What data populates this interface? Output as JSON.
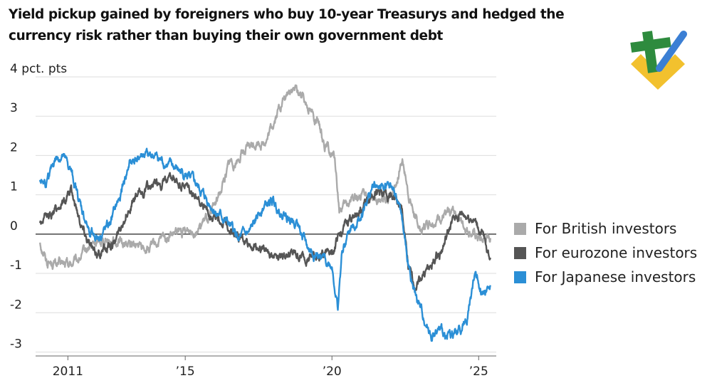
{
  "title": "Yield pickup gained by foreigners who buy 10-year Treasurys and hedged the currency risk rather than buying their own government debt",
  "logo": {
    "icon": "stock-brand-logo",
    "colors": [
      "#2e8b3e",
      "#f2c12e",
      "#3b7fd4"
    ]
  },
  "chart_data": {
    "type": "line",
    "title": "Yield pickup gained by foreigners who buy 10-year Treasurys and hedged the currency risk rather than buying their own government debt",
    "xlabel": "",
    "ylabel": "",
    "y_unit_label": "4 pct. pts",
    "xlim": [
      2009.9,
      2025.6
    ],
    "ylim": [
      -3.1,
      4
    ],
    "y_ticks": [
      {
        "value": 4,
        "label": "4 pct. pts"
      },
      {
        "value": 3,
        "label": "3"
      },
      {
        "value": 2,
        "label": "2"
      },
      {
        "value": 1,
        "label": "1"
      },
      {
        "value": 0,
        "label": "0"
      },
      {
        "value": -1,
        "label": "-1"
      },
      {
        "value": -2,
        "label": "-2"
      },
      {
        "value": -3,
        "label": "-3"
      }
    ],
    "x_ticks": [
      {
        "value": 2011,
        "label": "2011"
      },
      {
        "value": 2015,
        "label": "’15"
      },
      {
        "value": 2020,
        "label": "’20"
      },
      {
        "value": 2025,
        "label": "’25"
      }
    ],
    "grid": true,
    "legend_position": "right",
    "series": [
      {
        "name": "For British investors",
        "color": "#aaaaaa",
        "x": [
          2010.05,
          2010.3,
          2010.6,
          2010.9,
          2011.3,
          2011.8,
          2012.3,
          2012.8,
          2013.3,
          2013.8,
          2014.3,
          2014.7,
          2015.0,
          2015.5,
          2015.9,
          2016.2,
          2016.5,
          2016.8,
          2017.0,
          2017.4,
          2017.8,
          2018.2,
          2018.6,
          2018.9,
          2019.2,
          2019.5,
          2019.8,
          2020.1,
          2020.25,
          2020.5,
          2020.8,
          2021.2,
          2021.6,
          2021.9,
          2022.2,
          2022.4,
          2022.6,
          2022.8,
          2023.0,
          2023.3,
          2023.6,
          2023.9,
          2024.2,
          2024.5,
          2024.8,
          2025.1,
          2025.4
        ],
        "values": [
          -0.2,
          -0.7,
          -0.75,
          -0.8,
          -0.7,
          -0.3,
          -0.1,
          -0.2,
          -0.3,
          -0.4,
          -0.1,
          0.0,
          0.05,
          0.2,
          0.5,
          1.1,
          1.8,
          1.9,
          2.1,
          2.3,
          2.4,
          3.2,
          3.7,
          3.6,
          3.3,
          2.8,
          2.2,
          1.9,
          0.6,
          0.7,
          1.0,
          0.9,
          0.9,
          0.8,
          1.3,
          2.0,
          1.0,
          0.5,
          0.1,
          0.3,
          0.4,
          0.5,
          0.6,
          0.2,
          0.0,
          -0.2,
          -0.1
        ]
      },
      {
        "name": "For eurozone investors",
        "color": "#555555",
        "x": [
          2010.05,
          2010.4,
          2010.8,
          2011.1,
          2011.5,
          2011.9,
          2012.2,
          2012.6,
          2013.0,
          2013.4,
          2013.8,
          2014.2,
          2014.6,
          2015.0,
          2015.4,
          2015.8,
          2016.1,
          2016.5,
          2016.9,
          2017.3,
          2017.7,
          2018.1,
          2018.5,
          2018.9,
          2019.3,
          2019.7,
          2020.1,
          2020.3,
          2020.6,
          2021.0,
          2021.4,
          2021.8,
          2022.2,
          2022.4,
          2022.6,
          2022.8,
          2023.1,
          2023.4,
          2023.8,
          2024.1,
          2024.4,
          2024.8,
          2025.1,
          2025.4
        ],
        "values": [
          0.3,
          0.5,
          0.8,
          1.1,
          0.2,
          -0.5,
          -0.4,
          -0.2,
          0.6,
          1.0,
          1.2,
          1.3,
          1.3,
          1.2,
          0.9,
          0.6,
          0.4,
          0.2,
          -0.1,
          -0.3,
          -0.4,
          -0.5,
          -0.5,
          -0.6,
          -0.6,
          -0.5,
          -0.3,
          0.0,
          0.4,
          0.6,
          1.1,
          1.0,
          0.9,
          0.5,
          -0.9,
          -1.3,
          -1.0,
          -0.8,
          -0.3,
          0.3,
          0.5,
          0.4,
          0.0,
          -0.6
        ]
      },
      {
        "name": "For Japanese investors",
        "color": "#2b8fd6",
        "x": [
          2010.05,
          2010.3,
          2010.55,
          2010.8,
          2011.1,
          2011.4,
          2011.7,
          2012.0,
          2012.4,
          2012.8,
          2013.1,
          2013.5,
          2013.9,
          2014.3,
          2014.8,
          2015.2,
          2015.6,
          2016.0,
          2016.4,
          2016.8,
          2017.2,
          2017.6,
          2018.0,
          2018.4,
          2018.8,
          2019.2,
          2019.6,
          2020.0,
          2020.2,
          2020.35,
          2020.6,
          2021.0,
          2021.4,
          2021.8,
          2022.1,
          2022.3,
          2022.5,
          2022.8,
          2023.1,
          2023.4,
          2023.7,
          2024.0,
          2024.3,
          2024.6,
          2024.9,
          2025.1,
          2025.4
        ],
        "values": [
          1.4,
          1.3,
          1.9,
          2.0,
          1.6,
          0.8,
          0.1,
          -0.1,
          0.2,
          1.0,
          1.8,
          2.0,
          2.0,
          1.8,
          1.6,
          1.4,
          1.0,
          0.6,
          0.3,
          -0.1,
          0.0,
          0.7,
          0.8,
          0.5,
          0.3,
          -0.4,
          -0.6,
          -0.8,
          -1.9,
          -0.4,
          0.1,
          0.5,
          1.2,
          1.2,
          1.1,
          0.8,
          -0.3,
          -1.5,
          -2.1,
          -2.6,
          -2.5,
          -2.6,
          -2.5,
          -2.2,
          -0.9,
          -1.4,
          -1.3
        ]
      }
    ]
  }
}
